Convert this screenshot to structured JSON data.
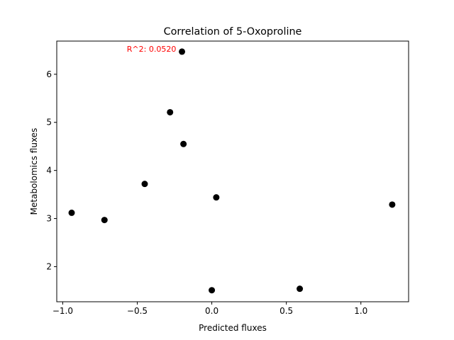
{
  "chart_data": {
    "type": "scatter",
    "title": "Correlation of 5-Oxoproline",
    "xlabel": "Predicted fluxes",
    "ylabel": "Metabolomics fluxes",
    "xlim": [
      -1.04,
      1.32
    ],
    "ylim": [
      1.27,
      6.69
    ],
    "x_ticks": [
      -1.0,
      -0.5,
      0.0,
      0.5,
      1.0
    ],
    "x_tick_labels": [
      "−1.0",
      "−0.5",
      "0.0",
      "0.5",
      "1.0"
    ],
    "y_ticks": [
      2,
      3,
      4,
      5,
      6
    ],
    "y_tick_labels": [
      "2",
      "3",
      "4",
      "5",
      "6"
    ],
    "grid": false,
    "legend": "none",
    "marker_color": "#000000",
    "annotation": {
      "text": "R^2: 0.0520",
      "color": "#ff0000",
      "x": -0.57,
      "y": 6.53
    },
    "series": [
      {
        "points": [
          {
            "x": -0.2,
            "y": 6.47
          },
          {
            "x": -0.28,
            "y": 5.21
          },
          {
            "x": -0.19,
            "y": 4.55
          },
          {
            "x": -0.45,
            "y": 3.72
          },
          {
            "x": 0.03,
            "y": 3.44
          },
          {
            "x": -0.94,
            "y": 3.12
          },
          {
            "x": -0.72,
            "y": 2.97
          },
          {
            "x": 1.21,
            "y": 3.29
          },
          {
            "x": 0.0,
            "y": 1.51
          },
          {
            "x": 0.59,
            "y": 1.54
          }
        ]
      }
    ]
  }
}
